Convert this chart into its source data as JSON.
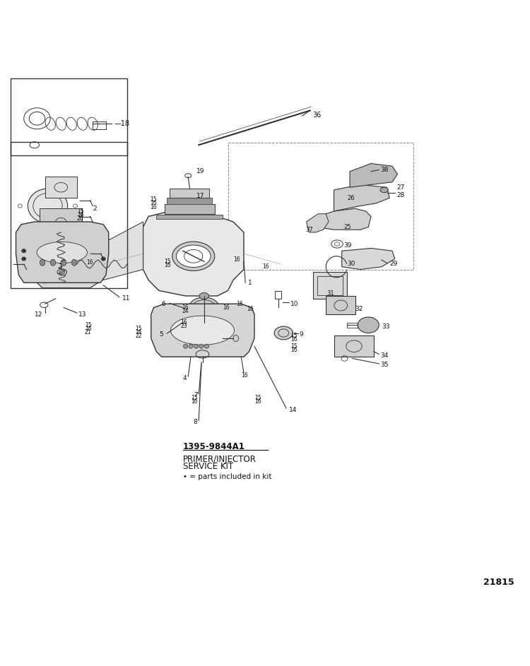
{
  "background_color": "#ffffff",
  "fig_width": 7.5,
  "fig_height": 9.43,
  "dpi": 100,
  "part_number": "21815",
  "kit_number": "1395-9844A1",
  "kit_title_line1": "PRIMER/INJECTOR",
  "kit_title_line2": "SERVICE KIT",
  "kit_note": "• = parts included in kit"
}
